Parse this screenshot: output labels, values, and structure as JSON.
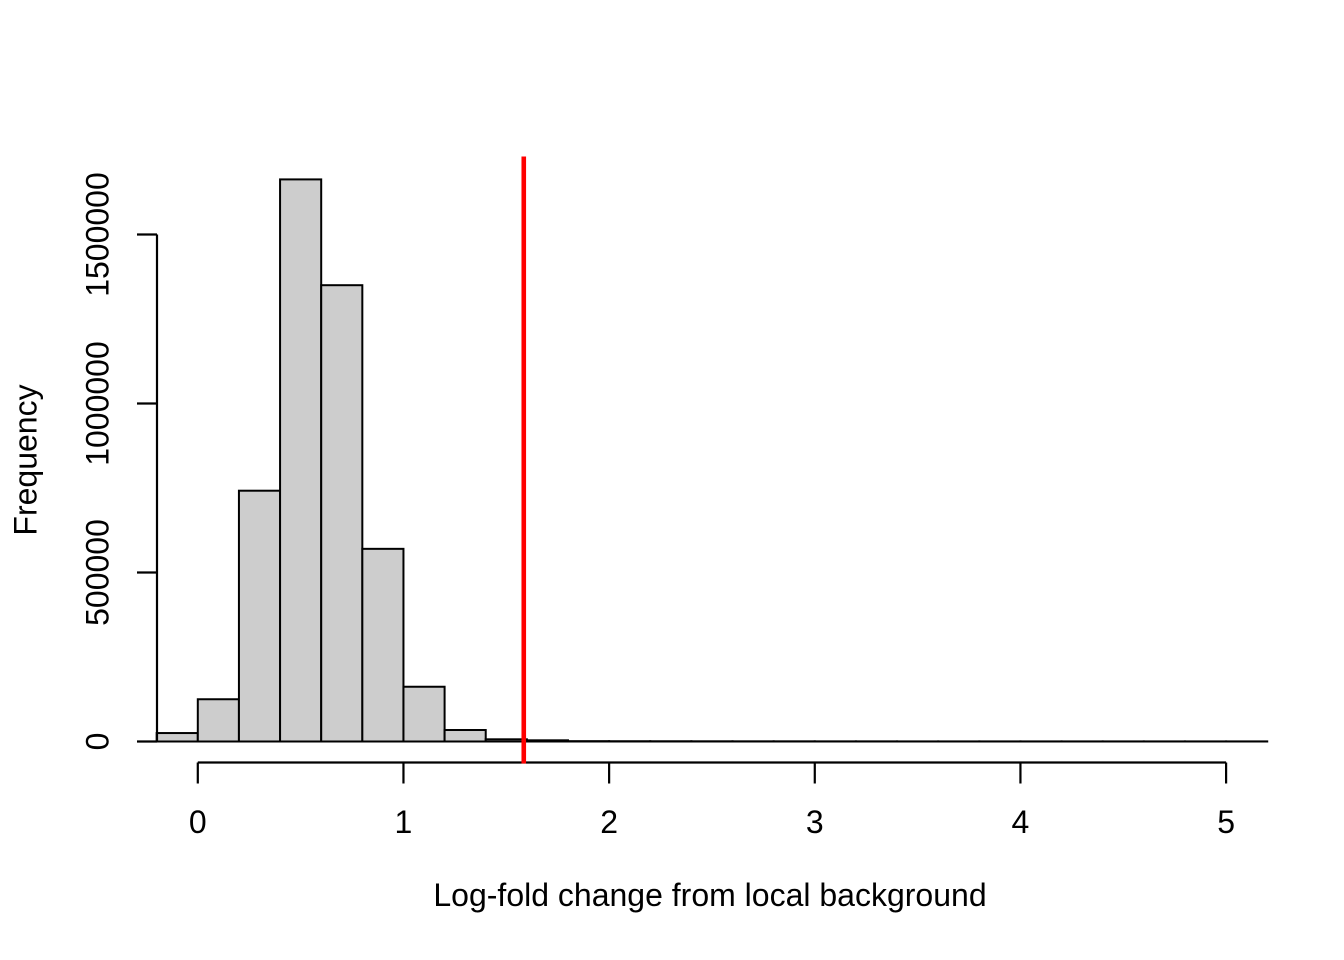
{
  "chart_data": {
    "type": "bar",
    "subtype": "histogram",
    "title": "",
    "xlabel": "Log-fold change from local background",
    "ylabel": "Frequency",
    "bins": {
      "start": -0.2,
      "width": 0.2,
      "counts": [
        25000,
        125000,
        742000,
        1663000,
        1350000,
        570000,
        162000,
        34000,
        6500,
        3500,
        1000,
        800,
        700,
        600,
        500,
        500,
        400,
        400,
        300,
        300,
        300,
        300,
        300,
        300,
        300,
        300,
        300
      ]
    },
    "x_tick_values": [
      0,
      1,
      2,
      3,
      4,
      5
    ],
    "x_tick_labels": [
      "0",
      "1",
      "2",
      "3",
      "4",
      "5"
    ],
    "y_tick_values": [
      0,
      500000,
      1000000,
      1500000
    ],
    "y_tick_labels": [
      "0",
      "500000",
      "1000000",
      "1500000"
    ],
    "xlim": [
      0,
      5
    ],
    "ylim": [
      0,
      1663000
    ],
    "grid": false,
    "legend": null,
    "vline": {
      "x": 1.585,
      "color": "#FF0000"
    },
    "colors": {
      "bar_fill": "#CDCDCD",
      "bar_border": "#000000",
      "axis": "#000000",
      "text": "#000000",
      "background": "#FFFFFF"
    }
  }
}
